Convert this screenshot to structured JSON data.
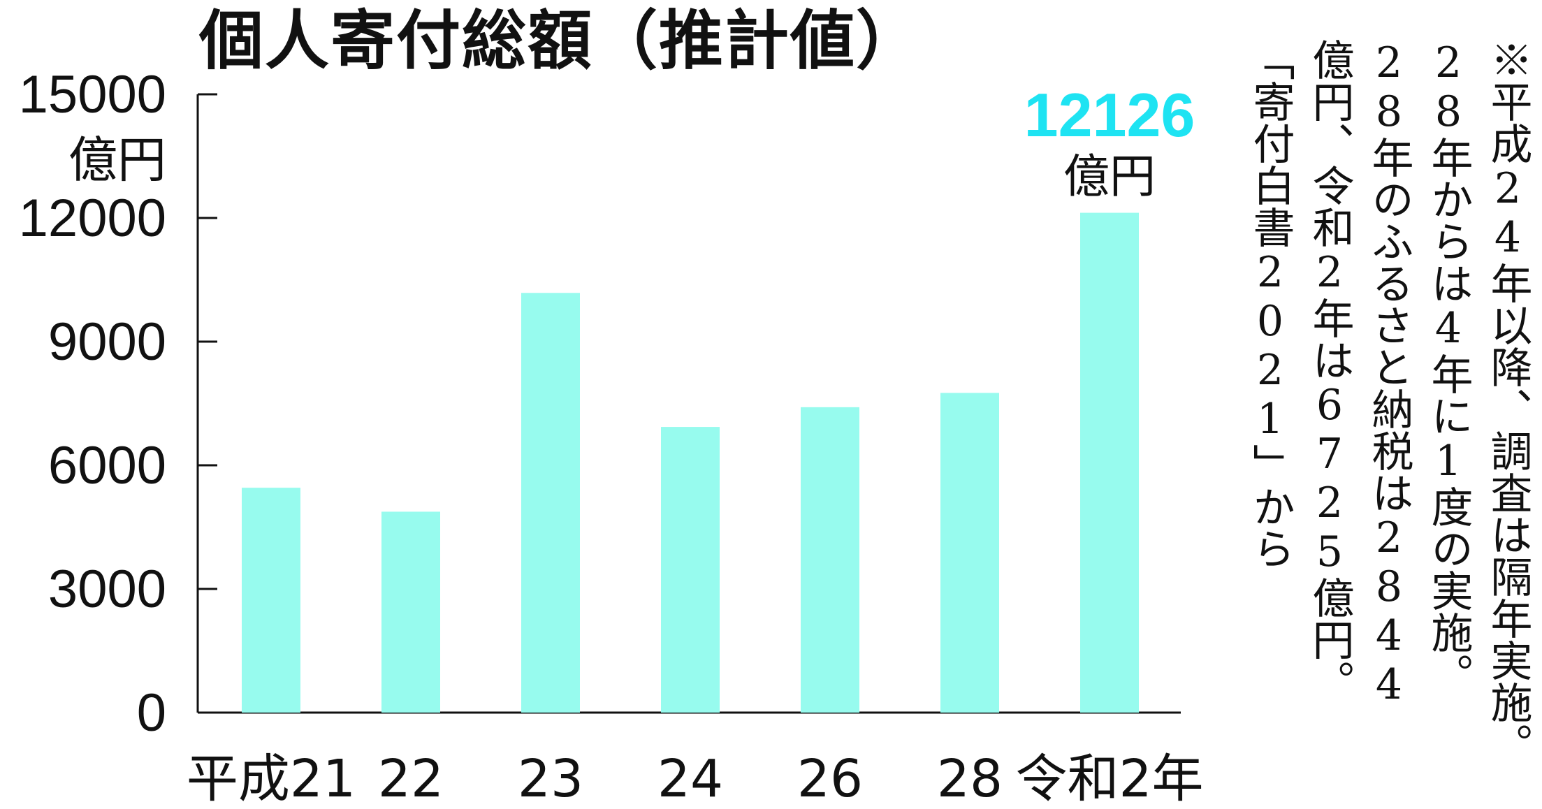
{
  "chart_data": {
    "type": "bar",
    "title": "個人寄付総額（推計値）",
    "categories": [
      "平成21",
      "22",
      "23",
      "24",
      "26",
      "28",
      "令和2年"
    ],
    "values": [
      5455,
      4874,
      10182,
      6931,
      7409,
      7756,
      12126
    ],
    "ylim": [
      0,
      15000
    ],
    "yticks": [
      0,
      3000,
      6000,
      9000,
      12000,
      15000
    ],
    "yunit": "億円",
    "highlight": {
      "index": 6,
      "value_label": "12126",
      "unit_label": "億円",
      "color": "#1ee3f2"
    },
    "bar_color": "#97fbee",
    "grid": false
  },
  "note": {
    "lines": [
      "※平成24年以降、調査は隔年実施。",
      "28年からは4年に1度の実施。",
      "28年のふるさと納税は2844",
      "億円、令和2年は6725億円。",
      "「寄付白書2021」から"
    ]
  }
}
